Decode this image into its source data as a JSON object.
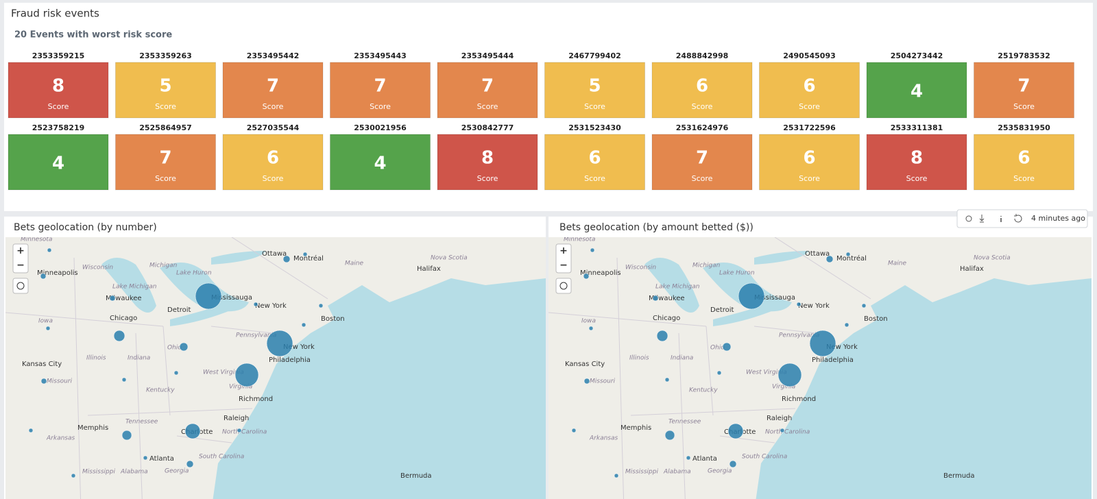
{
  "panel_title": "Fraud risk events",
  "subtitle": "20 Events with worst risk score",
  "tiles": [
    {
      "id": "2353359215",
      "score": 8,
      "label": "Score",
      "color": "#cf554a"
    },
    {
      "id": "2353359263",
      "score": 5,
      "label": "Score",
      "color": "#f0bd4f"
    },
    {
      "id": "2353495442",
      "score": 7,
      "label": "Score",
      "color": "#e3874d"
    },
    {
      "id": "2353495443",
      "score": 7,
      "label": "Score",
      "color": "#e3874d"
    },
    {
      "id": "2353495444",
      "score": 7,
      "label": "Score",
      "color": "#e3874d"
    },
    {
      "id": "2467799402",
      "score": 5,
      "label": "Score",
      "color": "#f0bd4f"
    },
    {
      "id": "2488842998",
      "score": 6,
      "label": "Score",
      "color": "#f0bd4f"
    },
    {
      "id": "2490545093",
      "score": 6,
      "label": "Score",
      "color": "#f0bd4f"
    },
    {
      "id": "2504273442",
      "score": 4,
      "color": "#55a34b"
    },
    {
      "id": "2519783532",
      "score": 7,
      "label": "Score",
      "color": "#e3874d"
    },
    {
      "id": "2523758219",
      "score": 4,
      "color": "#55a34b"
    },
    {
      "id": "2525864957",
      "score": 7,
      "label": "Score",
      "color": "#e3874d"
    },
    {
      "id": "2527035544",
      "score": 6,
      "label": "Score",
      "color": "#f0bd4f"
    },
    {
      "id": "2530021956",
      "score": 4,
      "color": "#55a34b"
    },
    {
      "id": "2530842777",
      "score": 8,
      "label": "Score",
      "color": "#cf554a"
    },
    {
      "id": "2531523430",
      "score": 6,
      "label": "Score",
      "color": "#f0bd4f"
    },
    {
      "id": "2531624976",
      "score": 7,
      "label": "Score",
      "color": "#e3874d"
    },
    {
      "id": "2531722596",
      "score": 6,
      "label": "Score",
      "color": "#f0bd4f"
    },
    {
      "id": "2533311381",
      "score": 8,
      "label": "Score",
      "color": "#cf554a"
    },
    {
      "id": "2535831950",
      "score": 6,
      "label": "Score",
      "color": "#f0bd4f"
    }
  ],
  "toolbar": {
    "updated": "4 minutes ago"
  },
  "maps": [
    {
      "title": "Bets geolocation (by number)"
    },
    {
      "title": "Bets geolocation (by amount betted ($))"
    }
  ],
  "zoom_in": "+",
  "zoom_out": "−",
  "map_labels": [
    "Minnesota",
    "Ottawa",
    "Montréal",
    "Maine",
    "Halifax",
    "Nova Scotia",
    "Wisconsin",
    "Michigan",
    "Minneapolis",
    "Lake Huron",
    "Lake Michigan",
    "Milwaukee",
    "Mississauga",
    "Detroit",
    "New York",
    "Boston",
    "Chicago",
    "Iowa",
    "Pennsylvania",
    "New York",
    "Ohio",
    "Illinois",
    "Indiana",
    "Philadelphia",
    "Kansas City",
    "West Virginia",
    "Missouri",
    "Virginia",
    "Kentucky",
    "Richmond",
    "Raleigh",
    "Tennessee",
    "Memphis",
    "Charlotte",
    "North Carolina",
    "Arkansas",
    "Atlanta",
    "South Carolina",
    "Mississippi",
    "Alabama",
    "Georgia",
    "Bermuda"
  ]
}
